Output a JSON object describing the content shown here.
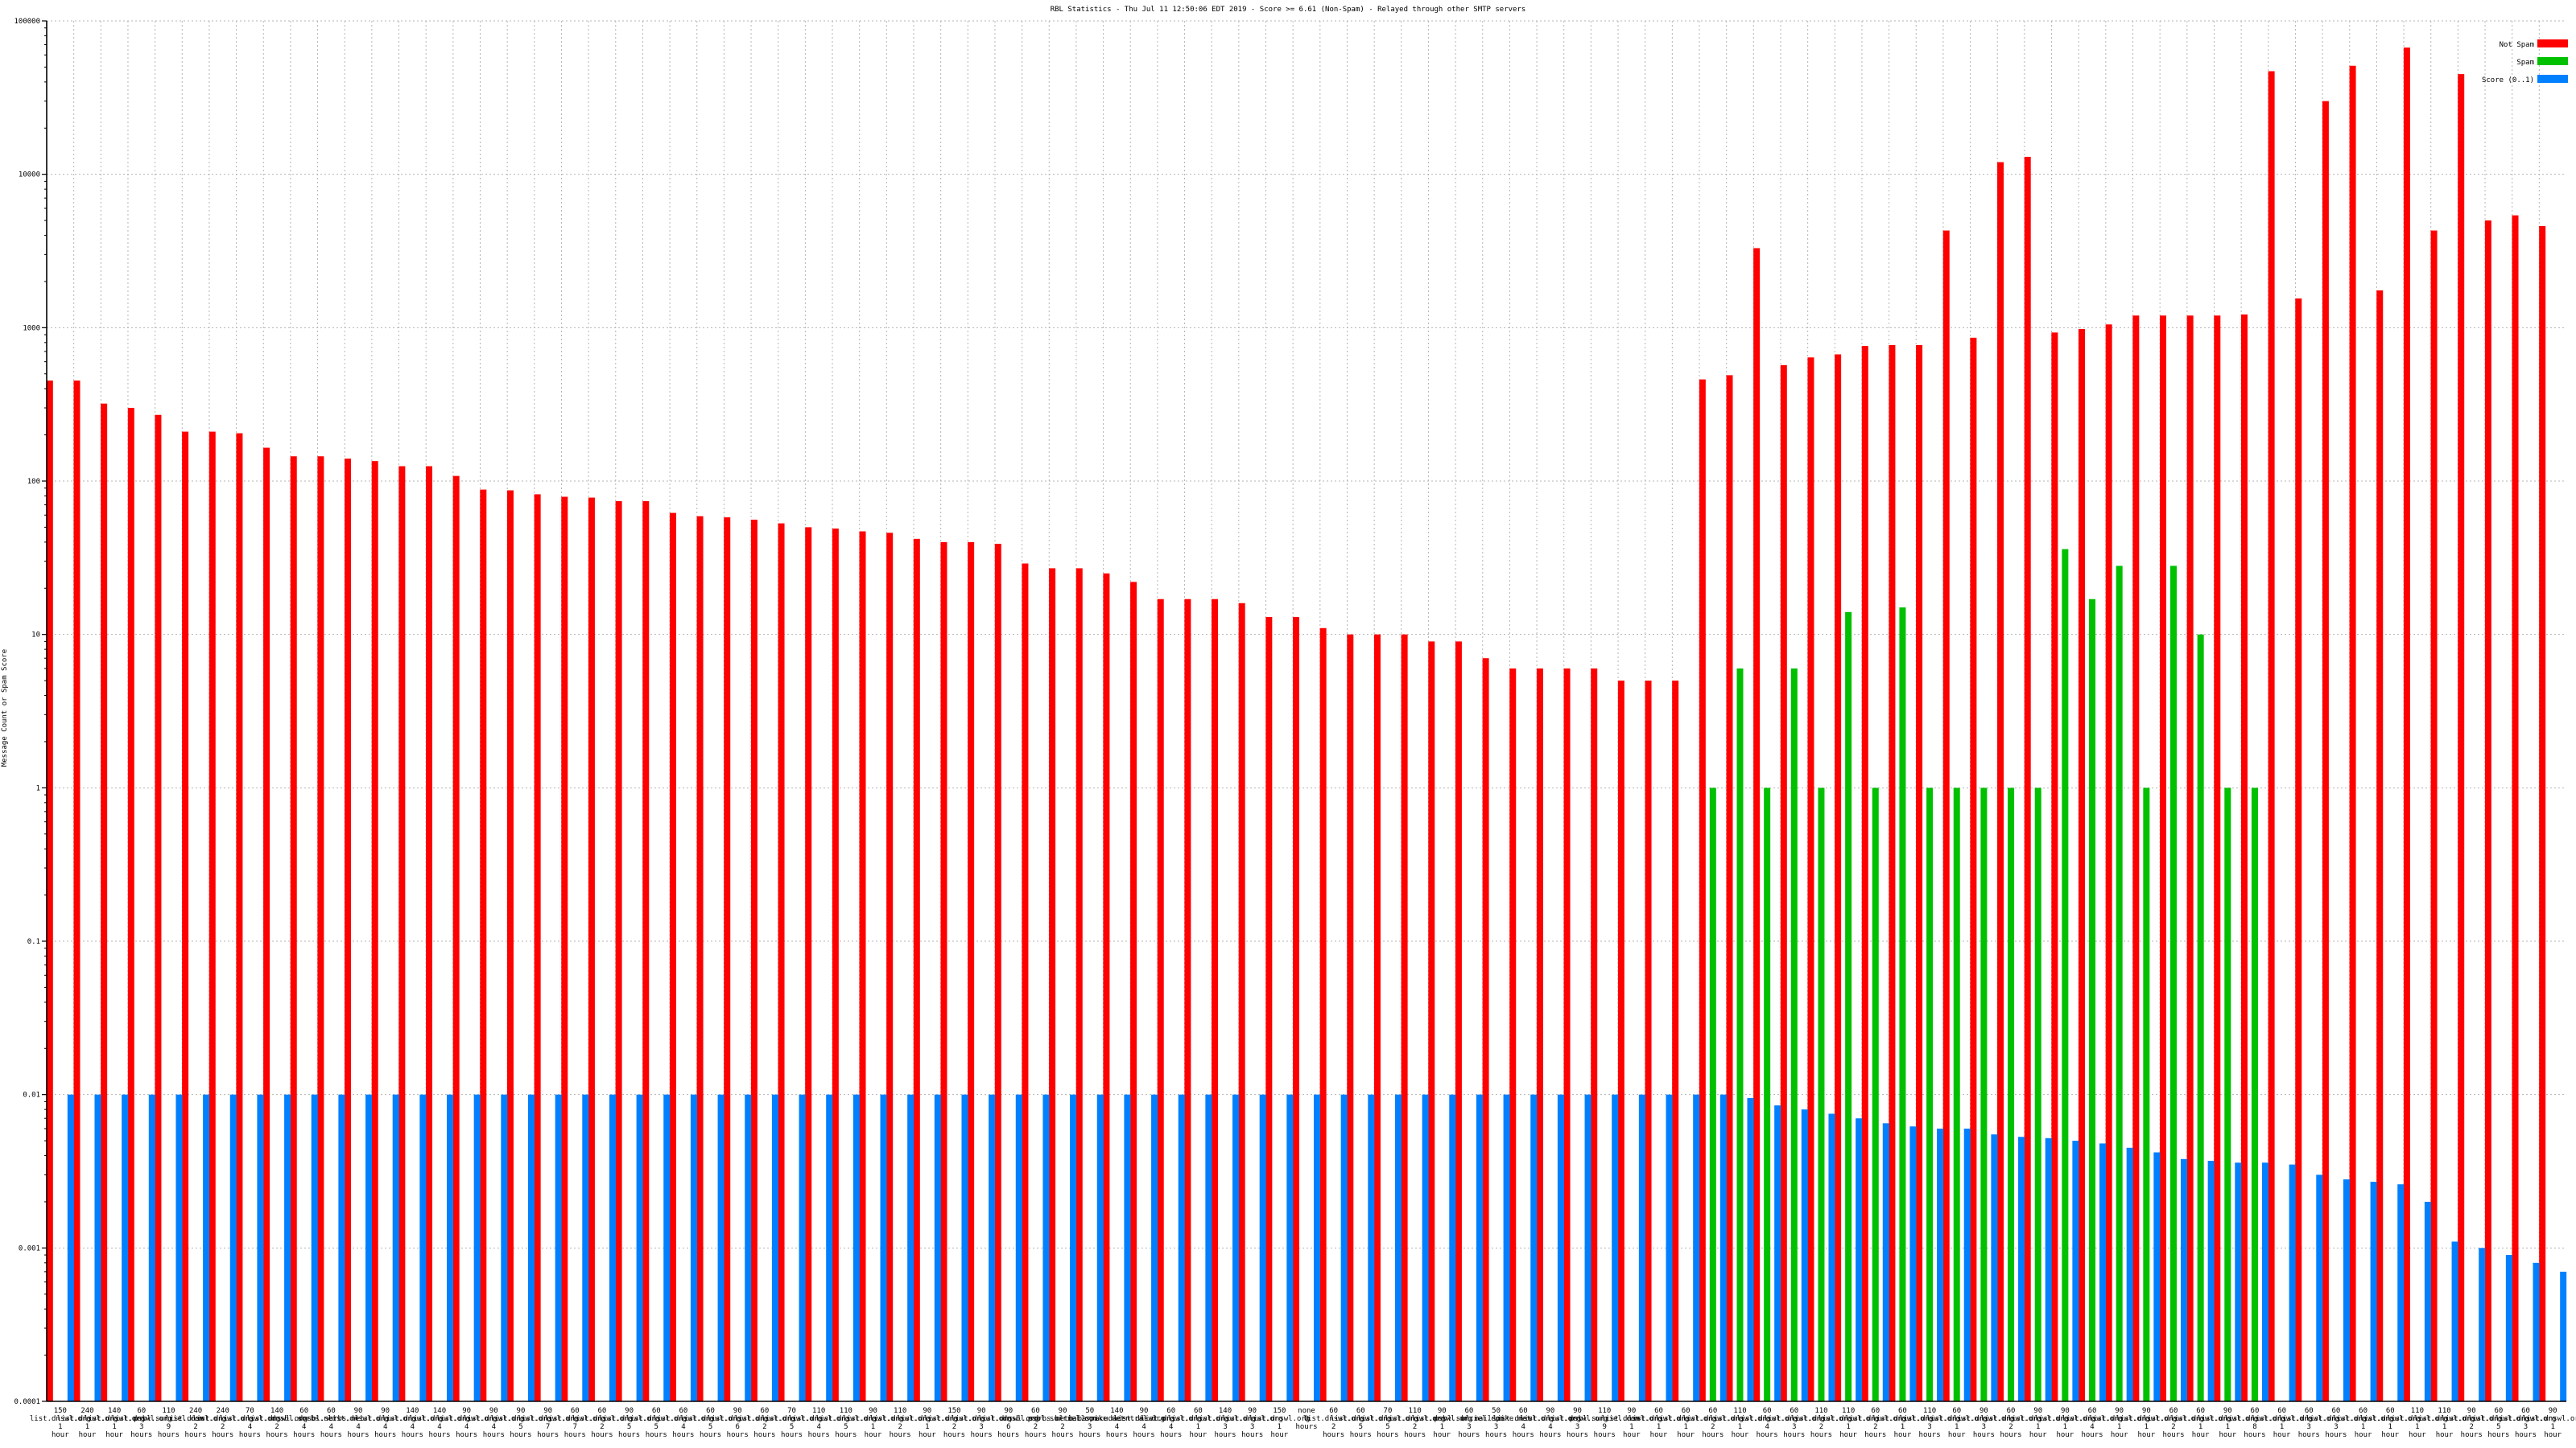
{
  "chart_data": {
    "type": "bar",
    "title": "RBL Statistics - Thu Jul 11 12:50:06 EDT 2019 - Score >= 6.61 (Non-Spam) - Relayed through other SMTP servers",
    "ylabel": "Message Count or Spam Score",
    "xlabel": "",
    "yscale": "log",
    "ylim": [
      0.0001,
      100000
    ],
    "yticks": [
      "0.0001",
      "0.001",
      "0.01",
      "0.1",
      "1",
      "10",
      "100",
      "1000",
      "10000",
      "100000"
    ],
    "grid": true,
    "legend_position": "top-right",
    "colors": {
      "Not Spam": "#ff0000",
      "Spam": "#00c000",
      "Score": "#0080ff"
    },
    "legend": [
      {
        "label": "Not Spam",
        "key": "not_spam"
      },
      {
        "label": "Spam",
        "key": "spam"
      },
      {
        "label": "Score (0..1)",
        "key": "score"
      }
    ],
    "categories": [
      "150 list.dnswl.org 1 hour",
      "240 list.dnswl.org 1 hour",
      "140 list.dnswl.org 1 hour",
      "60 list.dnswl.org 3 hours",
      "110 psbl.surriel.com 9 hours",
      "240 list.dnswl.org 2 hours",
      "240 list.dnswl.org 2 hours",
      "70 list.dnswl.org 4 hours",
      "140 list.dnswl.org 2 hours",
      "60 dnsbl.sorbs.net 4 hours",
      "60 dnsbl.sorbs.net 4 hours",
      "90 list.dnswl.org 4 hours",
      "90 list.dnswl.org 4 hours",
      "140 list.dnswl.org 4 hours",
      "140 list.dnswl.org 4 hours",
      "90 list.dnswl.org 4 hours",
      "90 list.dnswl.org 4 hours",
      "90 list.dnswl.org 5 hours",
      "90 list.dnswl.org 7 hours",
      "60 list.dnswl.org 7 hours",
      "60 list.dnswl.org 2 hours",
      "90 list.dnswl.org 5 hours",
      "60 list.dnswl.org 5 hours",
      "60 list.dnswl.org 4 hours",
      "60 list.dnswl.org 5 hours",
      "90 list.dnswl.org 6 hours",
      "60 list.dnswl.org 2 hours",
      "70 list.dnswl.org 5 hours",
      "110 list.dnswl.org 4 hours",
      "110 list.dnswl.org 5 hours",
      "90 list.dnswl.org 1 hour",
      "110 list.dnswl.org 2 hours",
      "90 list.dnswl.org 1 hour",
      "150 list.dnswl.org 2 hours",
      "90 list.dnswl.org 3 hours",
      "90 list.dnswl.org 6 hours",
      "60 dnsbl.sorbs.net 2 hours",
      "90 psbl.surriel.com 2 hours",
      "50 bl.mailspike.net 3 hours",
      "140 b.barracudacentral.org 4 hours",
      "90 list.dnswl.org 4 hours",
      "60 list.dnswl.org 4 hours",
      "60 list.dnswl.org 1 hour",
      "140 list.dnswl.org 3 hours",
      "90 list.dnswl.org 3 hours",
      "150 list.dnswl.org 1 hour",
      "none 0 hours",
      "60 list.dnswl.org 2 hours",
      "60 list.dnswl.org 5 hours",
      "70 list.dnswl.org 5 hours",
      "110 list.dnswl.org 2 hours",
      "90 list.dnswl.org 1 hour",
      "60 psbl.surriel.com 3 hours",
      "50 bl.mailspike.net 3 hours",
      "60 list.dnswl.org 4 hours",
      "90 list.dnswl.org 4 hours",
      "90 list.dnswl.org 3 hours",
      "110 psbl.surriel.com 9 hours",
      "90 list.dnswl.org 1 hour",
      "60 list.dnswl.org 1 hour",
      "60 list.dnswl.org 1 hour",
      "60 list.dnswl.org 2 hours",
      "110 list.dnswl.org 1 hour",
      "60 list.dnswl.org 4 hours",
      "60 list.dnswl.org 3 hours",
      "110 list.dnswl.org 2 hours",
      "110 list.dnswl.org 1 hour",
      "60 list.dnswl.org 2 hours",
      "60 list.dnswl.org 1 hour",
      "110 list.dnswl.org 3 hours",
      "60 list.dnswl.org 1 hour",
      "90 list.dnswl.org 3 hours",
      "60 list.dnswl.org 2 hours",
      "90 list.dnswl.org 1 hour",
      "90 list.dnswl.org 1 hour",
      "60 list.dnswl.org 4 hours",
      "90 list.dnswl.org 1 hour",
      "90 list.dnswl.org 1 hour",
      "60 list.dnswl.org 2 hours",
      "60 list.dnswl.org 1 hour",
      "90 list.dnswl.org 1 hour",
      "60 list.dnswl.org 8 hours",
      "60 list.dnswl.org 1 hour",
      "60 list.dnswl.org 3 hours",
      "60 list.dnswl.org 3 hours",
      "60 list.dnswl.org 1 hour",
      "60 list.dnswl.org 1 hour",
      "110 list.dnswl.org 1 hour",
      "110 list.dnswl.org 1 hour",
      "90 list.dnswl.org 2 hours",
      "60 list.dnswl.org 5 hours",
      "60 list.dnswl.org 3 hours",
      "90 list.dnswl.org 1 hour"
    ],
    "series": [
      {
        "name": "Not Spam",
        "values": [
          452,
          452,
          320,
          300,
          270,
          210,
          210,
          205,
          165,
          145,
          145,
          140,
          135,
          125,
          125,
          108,
          88,
          87,
          82,
          79,
          78,
          74,
          74,
          62,
          59,
          58,
          56,
          53,
          50,
          49,
          47,
          46,
          42,
          40,
          40,
          39,
          29,
          27,
          27,
          25,
          22,
          17,
          17,
          17,
          16,
          13,
          13,
          11,
          10,
          10,
          10,
          9,
          9,
          7,
          6,
          6,
          6,
          6,
          5,
          5,
          5,
          460,
          490,
          3300,
          570,
          640,
          670,
          760,
          770,
          770,
          4300,
          860,
          12000,
          13000,
          930,
          980,
          1050,
          1200,
          1200,
          1200,
          1200,
          1220,
          47000,
          1550,
          30000,
          51000,
          1750,
          67000,
          4300,
          45000,
          5000,
          5400,
          4600
        ]
      },
      {
        "name": "Spam",
        "values": [
          null,
          null,
          null,
          null,
          null,
          null,
          null,
          null,
          null,
          null,
          null,
          null,
          null,
          null,
          null,
          null,
          null,
          null,
          null,
          null,
          null,
          null,
          null,
          null,
          null,
          null,
          null,
          null,
          null,
          null,
          null,
          null,
          null,
          null,
          null,
          null,
          null,
          null,
          null,
          null,
          null,
          null,
          null,
          null,
          null,
          null,
          null,
          null,
          null,
          null,
          null,
          null,
          null,
          null,
          null,
          null,
          null,
          null,
          null,
          null,
          null,
          1,
          6,
          1,
          6,
          1,
          14,
          1,
          15,
          1,
          1,
          1,
          1,
          1,
          36,
          17,
          28,
          1,
          28,
          10,
          1,
          1,
          null,
          null,
          null,
          null,
          null,
          null,
          null,
          null,
          null,
          null,
          null
        ]
      },
      {
        "name": "Score (0..1)",
        "values": [
          0.01,
          0.01,
          0.01,
          0.01,
          0.01,
          0.01,
          0.01,
          0.01,
          0.01,
          0.01,
          0.01,
          0.01,
          0.01,
          0.01,
          0.01,
          0.01,
          0.01,
          0.01,
          0.01,
          0.01,
          0.01,
          0.01,
          0.01,
          0.01,
          0.01,
          0.01,
          0.01,
          0.01,
          0.01,
          0.01,
          0.01,
          0.01,
          0.01,
          0.01,
          0.01,
          0.01,
          0.01,
          0.01,
          0.01,
          0.01,
          0.01,
          0.01,
          0.01,
          0.01,
          0.01,
          0.01,
          0.01,
          0.01,
          0.01,
          0.01,
          0.01,
          0.01,
          0.01,
          0.01,
          0.01,
          0.01,
          0.01,
          0.01,
          0.01,
          0.01,
          0.01,
          0.01,
          0.0095,
          0.0085,
          0.008,
          0.0075,
          0.007,
          0.0065,
          0.0062,
          0.006,
          0.006,
          0.0055,
          0.0053,
          0.0052,
          0.005,
          0.0048,
          0.0045,
          0.0042,
          0.0038,
          0.0037,
          0.0036,
          0.0036,
          0.0035,
          0.003,
          0.0028,
          0.0027,
          0.0026,
          0.002,
          0.0011,
          0.001,
          0.0009,
          0.0008,
          0.0007
        ]
      }
    ]
  }
}
